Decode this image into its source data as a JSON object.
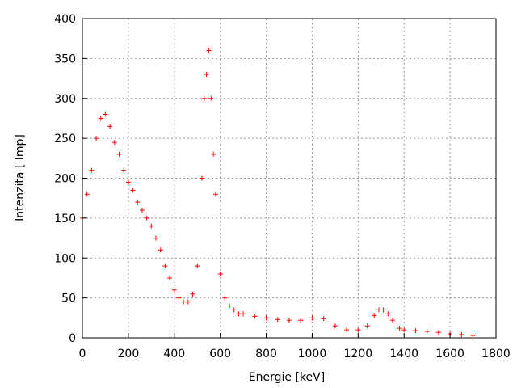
{
  "chart_data": {
    "type": "scatter",
    "xlabel": "Energie [keV]",
    "ylabel": "Intenzita [ Imp]",
    "xlim": [
      0,
      1800
    ],
    "ylim": [
      0,
      400
    ],
    "xticks": [
      0,
      200,
      400,
      600,
      800,
      1000,
      1200,
      1400,
      1600,
      1800
    ],
    "yticks": [
      0,
      50,
      100,
      150,
      200,
      250,
      300,
      350,
      400
    ],
    "grid": true,
    "marker": "+",
    "color": "#ff0000",
    "x": [
      0,
      20,
      40,
      60,
      80,
      100,
      120,
      140,
      160,
      180,
      200,
      220,
      240,
      260,
      280,
      300,
      320,
      340,
      360,
      380,
      400,
      420,
      440,
      460,
      480,
      500,
      520,
      530,
      540,
      550,
      560,
      570,
      580,
      600,
      620,
      640,
      660,
      680,
      700,
      750,
      800,
      850,
      900,
      950,
      1000,
      1050,
      1100,
      1150,
      1200,
      1240,
      1270,
      1290,
      1310,
      1330,
      1350,
      1380,
      1400,
      1450,
      1500,
      1550,
      1600,
      1650,
      1700
    ],
    "y": [
      150,
      180,
      210,
      250,
      275,
      280,
      265,
      245,
      230,
      210,
      195,
      185,
      170,
      160,
      150,
      140,
      125,
      110,
      90,
      75,
      60,
      50,
      45,
      45,
      55,
      90,
      200,
      300,
      330,
      360,
      300,
      230,
      180,
      80,
      50,
      40,
      35,
      30,
      30,
      27,
      25,
      23,
      22,
      22,
      25,
      24,
      15,
      10,
      10,
      15,
      28,
      35,
      35,
      30,
      22,
      12,
      10,
      9,
      8,
      7,
      5,
      4,
      3
    ]
  }
}
